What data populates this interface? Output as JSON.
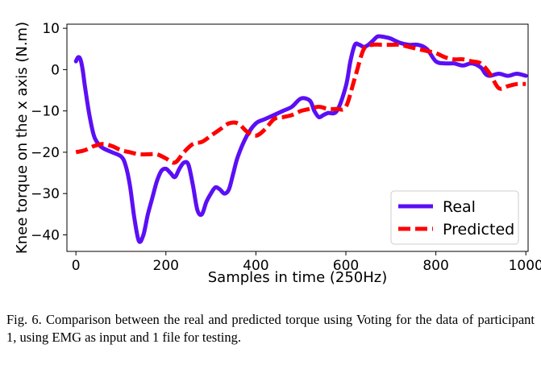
{
  "chart_data": {
    "type": "line",
    "xlabel": "Samples in time (250Hz)",
    "ylabel": "Knee torque on the x axis (N.m)",
    "xlim": [
      -20,
      1005
    ],
    "ylim": [
      -44,
      11
    ],
    "xticks": [
      0,
      200,
      400,
      600,
      800,
      1000
    ],
    "yticks": [
      10,
      0,
      -10,
      -20,
      -30,
      -40
    ],
    "legend_position": "lower-right",
    "grid": false,
    "series": [
      {
        "name": "Real",
        "color": "#5b0ff5",
        "style": "solid",
        "x": [
          0,
          5,
          10,
          15,
          20,
          30,
          40,
          50,
          60,
          80,
          100,
          110,
          120,
          130,
          140,
          150,
          160,
          170,
          180,
          190,
          200,
          210,
          220,
          230,
          240,
          250,
          260,
          270,
          280,
          290,
          300,
          310,
          320,
          330,
          340,
          350,
          360,
          380,
          400,
          420,
          440,
          460,
          480,
          500,
          520,
          530,
          540,
          550,
          560,
          580,
          600,
          610,
          620,
          630,
          640,
          650,
          660,
          670,
          680,
          690,
          700,
          720,
          740,
          760,
          780,
          800,
          820,
          840,
          860,
          880,
          900,
          910,
          920,
          940,
          960,
          980,
          1000
        ],
        "values": [
          2,
          3,
          2.5,
          0,
          -4,
          -11,
          -16,
          -18,
          -19,
          -20,
          -21,
          -23,
          -28,
          -36,
          -41.5,
          -40,
          -35,
          -31,
          -27,
          -24.5,
          -24,
          -25,
          -26,
          -24,
          -22.5,
          -23,
          -28,
          -34,
          -35,
          -32,
          -30,
          -28.5,
          -29,
          -30,
          -29,
          -25,
          -21,
          -16,
          -13,
          -12,
          -11,
          -10,
          -9,
          -7,
          -7.5,
          -10,
          -11.5,
          -11,
          -10.5,
          -10,
          -4,
          2,
          6,
          6,
          5.5,
          6,
          7,
          8,
          8,
          7.8,
          7.5,
          6.5,
          6,
          6,
          5,
          2,
          1.5,
          1.5,
          1,
          1.5,
          0.5,
          -1,
          -1.5,
          -1,
          -1.5,
          -1,
          -1.5
        ]
      },
      {
        "name": "Predicted",
        "color": "#ff0000",
        "style": "dashed",
        "x": [
          0,
          20,
          40,
          60,
          80,
          100,
          120,
          140,
          160,
          180,
          200,
          220,
          240,
          260,
          280,
          300,
          320,
          340,
          360,
          380,
          400,
          420,
          440,
          460,
          480,
          500,
          520,
          540,
          560,
          580,
          600,
          620,
          640,
          660,
          680,
          700,
          720,
          740,
          760,
          780,
          800,
          820,
          840,
          860,
          880,
          900,
          920,
          940,
          960,
          980,
          1000
        ],
        "values": [
          -20,
          -19.5,
          -18.5,
          -18,
          -18.5,
          -19.5,
          -20,
          -20.5,
          -20.5,
          -20.5,
          -21.5,
          -22.5,
          -20,
          -18,
          -17.5,
          -16,
          -14.5,
          -13,
          -13,
          -15,
          -16,
          -14.5,
          -12,
          -11.5,
          -11,
          -10,
          -9.5,
          -9,
          -9.5,
          -9.5,
          -9,
          -2,
          5,
          6,
          6,
          6,
          6,
          5.5,
          5,
          4.5,
          4,
          3,
          2.5,
          2.5,
          2,
          1.5,
          -1,
          -4.5,
          -4,
          -3.5,
          -3.5
        ]
      }
    ]
  },
  "caption": "Fig. 6.  Comparison between the real and predicted torque using Voting for the data of participant 1, using EMG as input and 1 file for testing."
}
